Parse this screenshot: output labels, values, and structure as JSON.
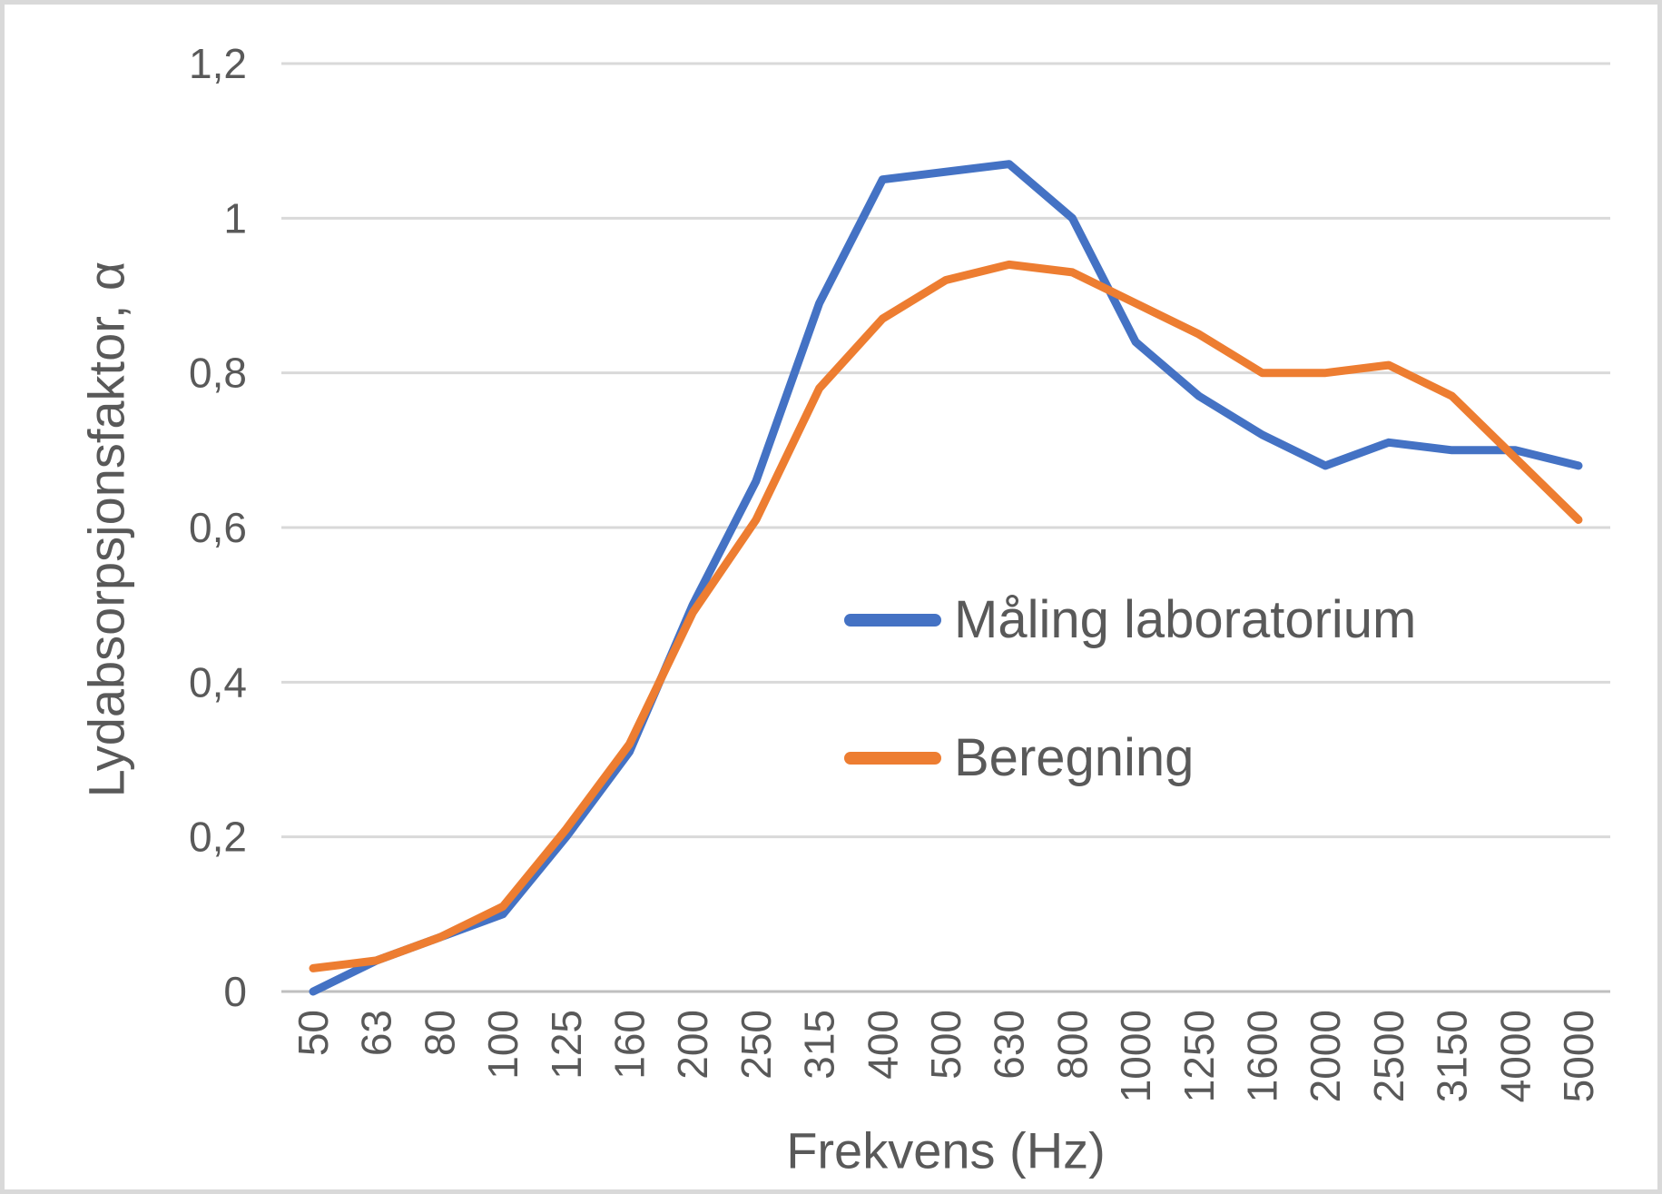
{
  "chart_data": {
    "type": "line",
    "title": "",
    "xlabel": "Frekvens (Hz)",
    "ylabel": "Lydabsorpsjonsfaktor, α",
    "categories": [
      50,
      63,
      80,
      100,
      125,
      160,
      200,
      250,
      315,
      400,
      500,
      630,
      800,
      1000,
      1250,
      1600,
      2000,
      2500,
      3150,
      4000,
      5000
    ],
    "x_tick_labels": [
      "50",
      "63",
      "80",
      "100",
      "125",
      "160",
      "200",
      "250",
      "315",
      "400",
      "500",
      "630",
      "800",
      "1000",
      "1250",
      "1600",
      "2000",
      "2500",
      "3150",
      "4000",
      "5000"
    ],
    "y_ticks": [
      0,
      0.2,
      0.4,
      0.6,
      0.8,
      1,
      1.2
    ],
    "y_tick_labels": [
      "0",
      "0,2",
      "0,4",
      "0,6",
      "0,8",
      "1",
      "1,2"
    ],
    "ylim": [
      0,
      1.2
    ],
    "grid": "horizontal",
    "legend_position": "center-right-inside",
    "series": [
      {
        "id": "maling-laboratorium",
        "name": "Måling laboratorium",
        "color": "#4472C4",
        "values": [
          0.0,
          0.04,
          0.07,
          0.1,
          0.2,
          0.31,
          0.5,
          0.66,
          0.89,
          1.05,
          1.06,
          1.07,
          1.0,
          0.84,
          0.77,
          0.72,
          0.68,
          0.71,
          0.7,
          0.7,
          0.68
        ]
      },
      {
        "id": "beregning",
        "name": "Beregning",
        "color": "#ED7D31",
        "values": [
          0.03,
          0.04,
          0.07,
          0.11,
          0.21,
          0.32,
          0.49,
          0.61,
          0.78,
          0.87,
          0.92,
          0.94,
          0.93,
          0.89,
          0.85,
          0.8,
          0.8,
          0.81,
          0.77,
          0.69,
          0.61
        ]
      }
    ],
    "colors": {
      "gridline": "#D9D9D9",
      "axis_line": "#BFBFBF",
      "text": "#595959",
      "background": "#FFFFFF",
      "frame_border": "#D9D9D9"
    }
  }
}
